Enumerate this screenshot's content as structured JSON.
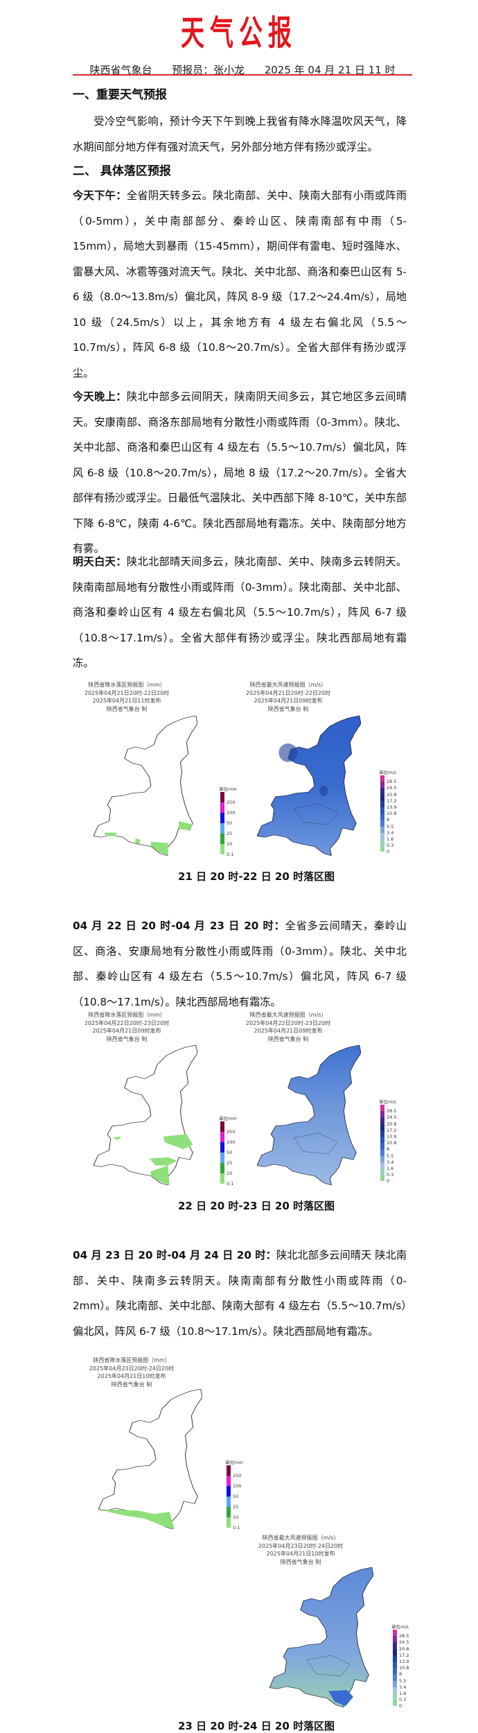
{
  "header": {
    "title": "天气公报",
    "office": "陕西省气象台",
    "forecaster": "预报员：张小龙",
    "issued": "2025 年 04 月 21 日 11 时"
  },
  "section1": {
    "heading": "一、重要天气预报",
    "text": "受冷空气影响，预计今天下午到晚上我省有降水降温吹风天气，降水期间部分地方伴有强对流天气，另外部分地方伴有扬沙或浮尘。"
  },
  "section2": {
    "heading": "二、 具体落区预报",
    "afternoon": {
      "label": "今天下午：",
      "text": "全省阴天转多云。陕北南部、关中、陕南大部有小雨或阵雨（0-5mm），关中南部部分、秦岭山区、陕南南部有中雨（5-15mm），局地大到暴雨（15-45mm），期间伴有雷电、短时强降水、雷暴大风、冰雹等强对流天气。陕北、关中北部、商洛和秦巴山区有 5-6 级（8.0～13.8m/s）偏北风，阵风 8-9 级（17.2～24.4m/s），局地 10 级（24.5m/s）以上，其余地方有 4 级左右偏北风（5.5～10.7m/s），阵风 6-8 级（10.8～20.7m/s）。全省大部伴有扬沙或浮尘。"
    },
    "evening": {
      "label": "今天晚上：",
      "text": "陕北中部多云间阴天，陕南阴天间多云，其它地区多云间晴天。安康南部、商洛东部局地有分散性小雨或阵雨（0-3mm）。陕北、关中北部、商洛和秦巴山区有 4 级左右（5.5～10.7m/s）偏北风，阵风 6-8 级（10.8～20.7m/s），局地 8 级（17.2～20.7m/s）。全省大部伴有扬沙或浮尘。日最低气温陕北、关中西部下降 8-10℃，关中东部下降 6-8℃，陕南 4-6℃。陕北西部局地有霜冻。关中、陕南部分地方有雾。"
    },
    "tomorrow": {
      "label": "明天白天：",
      "text": "陕北北部晴天间多云，陕北南部、关中、陕南多云转阴天。陕南南部局地有分散性小雨或阵雨（0-3mm）。陕北南部、关中北部、商洛和秦岭山区有 4 级左右偏北风（5.5～10.7m/s），阵风 6-7 级（10.8～17.1m/s）。全省大部伴有扬沙或浮尘。陕北西部局地有霜冻。"
    },
    "day2": {
      "label": "04 月 22 日 20 时-04 月 23 日 20 时：",
      "text": "全省多云间晴天，秦岭山区、商洛、安康局地有分散性小雨或阵雨（0-3mm）。陕北、关中北部、秦岭山区有 4 级左右（5.5～10.7m/s）偏北风，阵风 6-7 级（10.8～17.1m/s）。陕北西部局地有霜冻。"
    },
    "day3": {
      "label": "04 月 23 日 20 时-04 月 24 日 20 时：",
      "text": "陕北北部多云间晴天 陕北南部、关中、陕南多云转阴天。陕南南部有分散性小雨或阵雨（0-2mm）。陕北南部、关中北部、陕南大部有 4 级左右（5.5～10.7m/s）偏北风，阵风 6-7 级（10.8～17.1m/s）。陕北西部局地有霜冻。"
    }
  },
  "maps": [
    {
      "caption": "21 日 20 时-22 日 20 时落区图",
      "rain": {
        "title": "陕西省降水落区预报图（mm）",
        "period": "2025年04月21日20时-22日20时",
        "issued": "2025年04月21日11时发布",
        "maker": "陕西省气象台 制"
      },
      "wind": {
        "title": "陕西省最大风速预报图（m/s）",
        "period": "2025年04月21日20时-22日20时",
        "issued": "2025年04月21日09时发布",
        "maker": "陕西省气象台 制"
      }
    },
    {
      "caption": "22 日 20 时-23 日 20 时落区图",
      "rain": {
        "title": "陕西省降水落区预报图（mm）",
        "period": "2025年04月22日20时-23日20时",
        "issued": "2025年04月21日09时发布",
        "maker": "陕西省气象台 制"
      },
      "wind": {
        "title": "陕西省最大风速预报图（m/s）",
        "period": "2025年04月22日20时-23日20时",
        "issued": "2025年04月21日09时发布",
        "maker": "陕西省气象台 制"
      }
    },
    {
      "caption": "23 日 20 时-24 日 20 时落区图",
      "rain": {
        "title": "陕西省降水落区预报图（mm）",
        "period": "2025年04月23日20时-24日20时",
        "issued": "2025年04月21日10时发布",
        "maker": "陕西省气象台 制"
      },
      "wind": {
        "title": "陕西省最大风速预报图（m/s）",
        "period": "2025年04月23日20时-24日20时",
        "issued": "2025年04月21日10时发布",
        "maker": "陕西省气象台 制"
      }
    }
  ],
  "legend": {
    "rain": {
      "unit": "单位mm",
      "labels": [
        "250",
        "100",
        "50",
        "25",
        "10",
        "0.1"
      ],
      "colors": [
        "#7a0a3c",
        "#e020d0",
        "#1010e0",
        "#5aa8f0",
        "#2ea83a",
        "#8fe07a"
      ]
    },
    "wind": {
      "unit": "单位m/s",
      "labels": [
        "28.5",
        "24.5",
        "20.8",
        "17.2",
        "13.9",
        "10.8",
        "8",
        "5.5",
        "3.4",
        "1.6",
        "0.3",
        "0"
      ],
      "colors": [
        "#d0309a",
        "#8a2a9a",
        "#3a2a8a",
        "#1a2a7a",
        "#1f3f9a",
        "#2a55b8",
        "#3566c8",
        "#4a7fd4",
        "#7ea2dc",
        "#a8c0e4",
        "#9cd0b8",
        "#8ed99c"
      ]
    }
  },
  "colors": {
    "title_red": "#e3161c",
    "rain_light": "#8fe07a",
    "wind_blue": "#3b6fd0",
    "wind_light": "#8fb0e0",
    "wind_green": "#9ccfb4"
  }
}
